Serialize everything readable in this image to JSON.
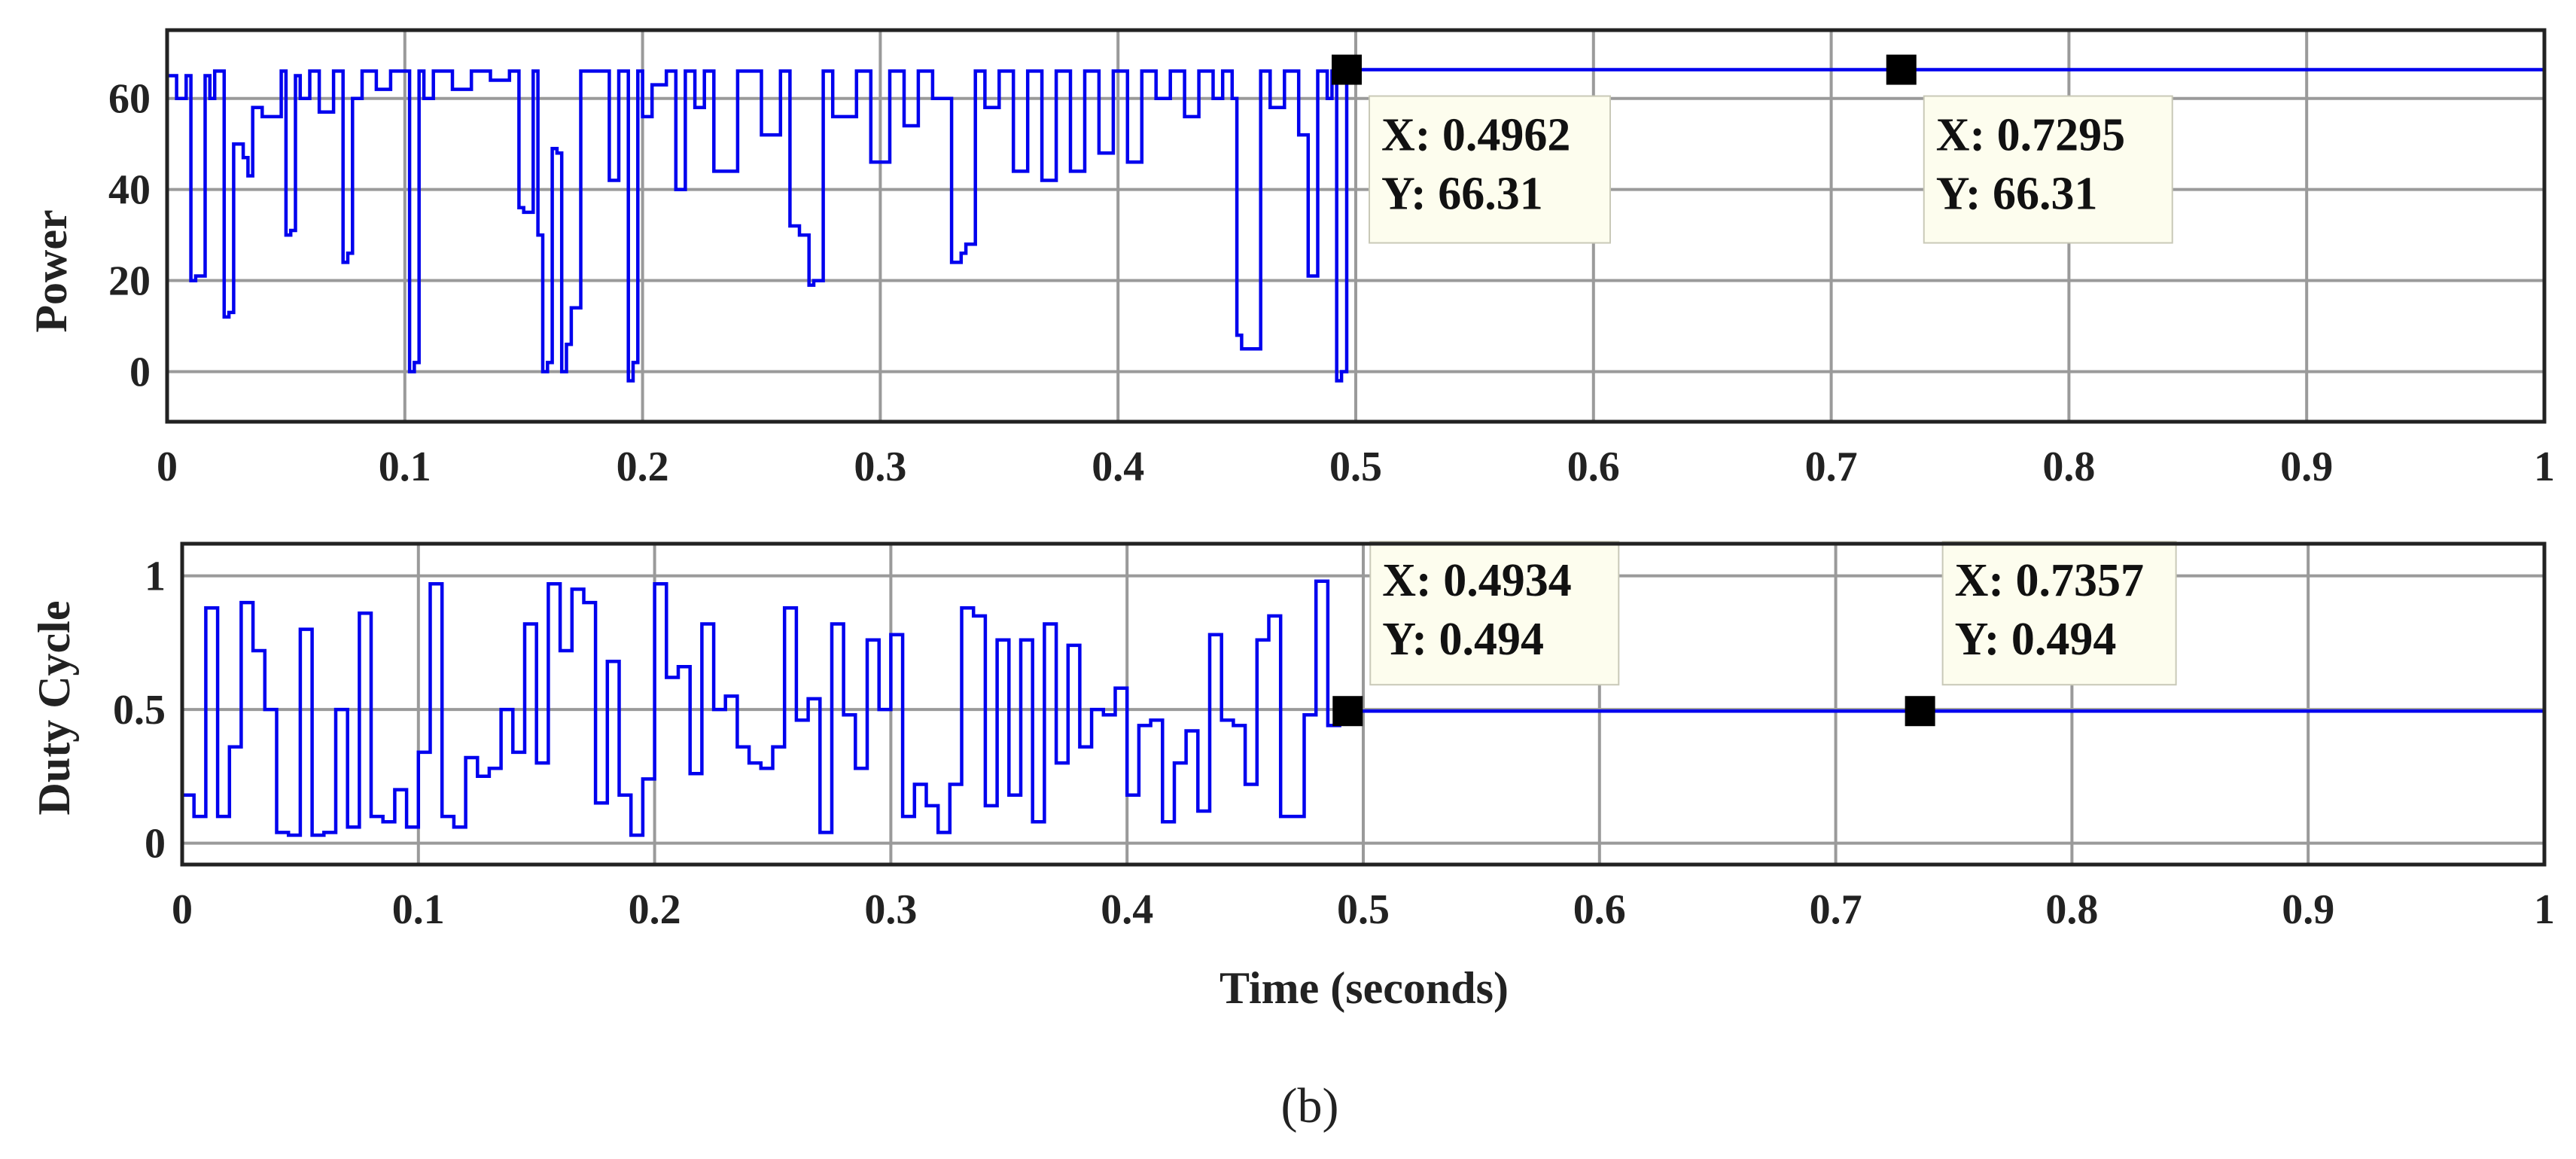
{
  "figure": {
    "caption": "(b)",
    "line_color": "#0000ee",
    "marker_color": "#000000",
    "tooltip_bg": "#fdfdee"
  },
  "chart_data": [
    {
      "type": "line",
      "ylabel": "Power",
      "xlabel": "",
      "xlim": [
        0,
        1
      ],
      "ylim": [
        -11,
        75
      ],
      "x_ticks": [
        0,
        0.1,
        0.2,
        0.3,
        0.4,
        0.5,
        0.6,
        0.7,
        0.8,
        0.9,
        1
      ],
      "x_tick_labels": [
        "0",
        "0.1",
        "0.2",
        "0.3",
        "0.4",
        "0.5",
        "0.6",
        "0.7",
        "0.8",
        "0.9",
        "1"
      ],
      "y_ticks": [
        0,
        20,
        40,
        60
      ],
      "y_tick_labels": [
        "0",
        "20",
        "40",
        "60"
      ],
      "grid": true,
      "series": [
        {
          "name": "Power",
          "x": [
            0,
            0.004,
            0.008,
            0.01,
            0.012,
            0.016,
            0.018,
            0.02,
            0.024,
            0.026,
            0.028,
            0.032,
            0.034,
            0.036,
            0.04,
            0.048,
            0.05,
            0.052,
            0.054,
            0.056,
            0.06,
            0.064,
            0.07,
            0.074,
            0.076,
            0.078,
            0.082,
            0.088,
            0.094,
            0.1,
            0.102,
            0.104,
            0.106,
            0.108,
            0.112,
            0.12,
            0.128,
            0.136,
            0.144,
            0.148,
            0.15,
            0.154,
            0.156,
            0.158,
            0.16,
            0.162,
            0.164,
            0.166,
            0.168,
            0.17,
            0.172,
            0.174,
            0.18,
            0.186,
            0.19,
            0.194,
            0.196,
            0.198,
            0.2,
            0.204,
            0.21,
            0.214,
            0.218,
            0.222,
            0.226,
            0.23,
            0.24,
            0.25,
            0.258,
            0.262,
            0.266,
            0.27,
            0.272,
            0.276,
            0.28,
            0.29,
            0.296,
            0.304,
            0.31,
            0.316,
            0.322,
            0.33,
            0.334,
            0.336,
            0.34,
            0.344,
            0.35,
            0.356,
            0.362,
            0.368,
            0.374,
            0.38,
            0.386,
            0.392,
            0.398,
            0.404,
            0.41,
            0.416,
            0.422,
            0.428,
            0.434,
            0.44,
            0.444,
            0.448,
            0.45,
            0.452,
            0.456,
            0.46,
            0.464,
            0.47,
            0.476,
            0.48,
            0.484,
            0.488,
            0.49,
            0.492,
            0.494,
            0.4962,
            0.6,
            0.7295,
            0.8,
            1
          ],
          "y": [
            65,
            60,
            65,
            20,
            21,
            65,
            60,
            66,
            12,
            13,
            50,
            47,
            43,
            58,
            56,
            66,
            30,
            31,
            65,
            60,
            66,
            57,
            66,
            24,
            26,
            60,
            66,
            62,
            66,
            66,
            0,
            2,
            66,
            60,
            66,
            62,
            66,
            64,
            66,
            36,
            35,
            66,
            30,
            0,
            2,
            49,
            48,
            0,
            6,
            14,
            14,
            66,
            66,
            42,
            66,
            -2,
            2,
            66,
            56,
            63,
            66,
            40,
            66,
            58,
            66,
            44,
            66,
            52,
            66,
            32,
            30,
            19,
            20,
            66,
            56,
            66,
            46,
            66,
            54,
            66,
            60,
            24,
            26,
            28,
            66,
            58,
            66,
            44,
            66,
            42,
            66,
            44,
            66,
            48,
            66,
            46,
            66,
            60,
            66,
            56,
            66,
            60,
            66,
            60,
            8,
            5,
            5,
            66,
            58,
            66,
            52,
            21,
            66,
            60,
            66,
            -2,
            0,
            66.31,
            66.31,
            66.31,
            66.31,
            66.31
          ]
        }
      ],
      "datatips": [
        {
          "x": 0.4962,
          "y": 66.31,
          "x_text": "X: 0.4962",
          "y_text": "Y: 66.31"
        },
        {
          "x": 0.7295,
          "y": 66.31,
          "x_text": "X: 0.7295",
          "y_text": "Y: 66.31"
        }
      ]
    },
    {
      "type": "line",
      "ylabel": "Duty Cycle",
      "xlabel": "Time (seconds)",
      "xlim": [
        0,
        1
      ],
      "ylim": [
        -0.08,
        1.12
      ],
      "x_ticks": [
        0,
        0.1,
        0.2,
        0.3,
        0.4,
        0.5,
        0.6,
        0.7,
        0.8,
        0.9,
        1
      ],
      "x_tick_labels": [
        "0",
        "0.1",
        "0.2",
        "0.3",
        "0.4",
        "0.5",
        "0.6",
        "0.7",
        "0.8",
        "0.9",
        "1"
      ],
      "y_ticks": [
        0,
        0.5,
        1
      ],
      "y_tick_labels": [
        "0",
        "0.5",
        "1"
      ],
      "grid": true,
      "series": [
        {
          "name": "Duty Cycle",
          "x": [
            0,
            0.005,
            0.01,
            0.015,
            0.02,
            0.025,
            0.03,
            0.035,
            0.04,
            0.045,
            0.05,
            0.055,
            0.06,
            0.065,
            0.07,
            0.075,
            0.08,
            0.085,
            0.09,
            0.095,
            0.1,
            0.105,
            0.11,
            0.115,
            0.12,
            0.125,
            0.13,
            0.135,
            0.14,
            0.145,
            0.15,
            0.155,
            0.16,
            0.165,
            0.17,
            0.175,
            0.18,
            0.185,
            0.19,
            0.195,
            0.2,
            0.205,
            0.21,
            0.215,
            0.22,
            0.225,
            0.23,
            0.235,
            0.24,
            0.245,
            0.25,
            0.255,
            0.26,
            0.265,
            0.27,
            0.275,
            0.28,
            0.285,
            0.29,
            0.295,
            0.3,
            0.305,
            0.31,
            0.315,
            0.32,
            0.325,
            0.33,
            0.335,
            0.34,
            0.345,
            0.35,
            0.355,
            0.36,
            0.365,
            0.37,
            0.375,
            0.38,
            0.385,
            0.39,
            0.395,
            0.4,
            0.405,
            0.41,
            0.415,
            0.42,
            0.425,
            0.43,
            0.435,
            0.44,
            0.445,
            0.45,
            0.455,
            0.46,
            0.465,
            0.47,
            0.475,
            0.48,
            0.485,
            0.49,
            0.4934,
            0.6,
            0.7357,
            0.8,
            1
          ],
          "y": [
            0.18,
            0.1,
            0.88,
            0.1,
            0.36,
            0.9,
            0.72,
            0.5,
            0.04,
            0.03,
            0.8,
            0.03,
            0.04,
            0.5,
            0.06,
            0.86,
            0.1,
            0.08,
            0.2,
            0.06,
            0.34,
            0.97,
            0.1,
            0.06,
            0.32,
            0.25,
            0.28,
            0.5,
            0.34,
            0.82,
            0.3,
            0.97,
            0.72,
            0.95,
            0.9,
            0.15,
            0.68,
            0.18,
            0.03,
            0.24,
            0.97,
            0.62,
            0.66,
            0.26,
            0.82,
            0.5,
            0.55,
            0.36,
            0.3,
            0.28,
            0.36,
            0.88,
            0.46,
            0.54,
            0.04,
            0.82,
            0.48,
            0.28,
            0.76,
            0.5,
            0.78,
            0.1,
            0.22,
            0.14,
            0.04,
            0.22,
            0.88,
            0.85,
            0.14,
            0.76,
            0.18,
            0.76,
            0.08,
            0.82,
            0.3,
            0.74,
            0.36,
            0.5,
            0.48,
            0.58,
            0.18,
            0.44,
            0.46,
            0.08,
            0.3,
            0.42,
            0.12,
            0.78,
            0.46,
            0.44,
            0.22,
            0.76,
            0.85,
            0.1,
            0.1,
            0.48,
            0.98,
            0.44,
            0.49,
            0.494,
            0.494,
            0.494,
            0.494,
            0.494
          ]
        }
      ],
      "datatips": [
        {
          "x": 0.4934,
          "y": 0.494,
          "x_text": "X: 0.4934",
          "y_text": "Y: 0.494"
        },
        {
          "x": 0.7357,
          "y": 0.494,
          "x_text": "X: 0.7357",
          "y_text": "Y: 0.494"
        }
      ]
    }
  ]
}
